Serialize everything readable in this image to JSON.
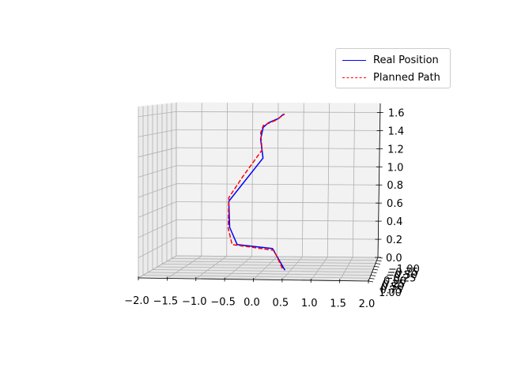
{
  "chart_data": {
    "type": "line",
    "projection": "3d",
    "view": {
      "elevation": "low",
      "azimuth": "near x-z plane"
    },
    "grid": true,
    "legend_position": "upper-right",
    "xlim": [
      -2.0,
      2.0
    ],
    "ylim": [
      -1.0,
      1.0
    ],
    "zlim": [
      0.0,
      1.7
    ],
    "x_ticks": [
      "−2.0",
      "−1.5",
      "−1.0",
      "−0.5",
      "0.0",
      "0.5",
      "1.0",
      "1.5",
      "2.0"
    ],
    "y_ticks": [
      "−1.00",
      "−0.75",
      "−0.50",
      "−0.25",
      "0.00",
      "0.25",
      "0.50",
      "0.75",
      "1.00"
    ],
    "z_ticks": [
      "0.0",
      "0.2",
      "0.4",
      "0.6",
      "0.8",
      "1.0",
      "1.2",
      "1.4",
      "1.6"
    ],
    "series": [
      {
        "name": "Real Position",
        "color": "#0000ff",
        "style": "solid",
        "x": [
          0.25,
          0.0,
          -0.7,
          -0.85,
          -0.87,
          -0.2,
          -0.25,
          -0.2,
          -0.1,
          0.1,
          0.2
        ],
        "z": [
          -0.08,
          0.16,
          0.2,
          0.39,
          0.68,
          1.16,
          1.37,
          1.5,
          1.55,
          1.6,
          1.65
        ]
      },
      {
        "name": "Planned Path",
        "color": "#ff0000",
        "style": "dashed",
        "x": [
          0.2,
          0.03,
          -0.8,
          -0.88,
          -0.87,
          -0.6,
          -0.22,
          -0.25,
          -0.2,
          0.05,
          0.22
        ],
        "z": [
          -0.06,
          0.14,
          0.2,
          0.38,
          0.72,
          0.95,
          1.25,
          1.44,
          1.52,
          1.58,
          1.65
        ]
      }
    ]
  }
}
